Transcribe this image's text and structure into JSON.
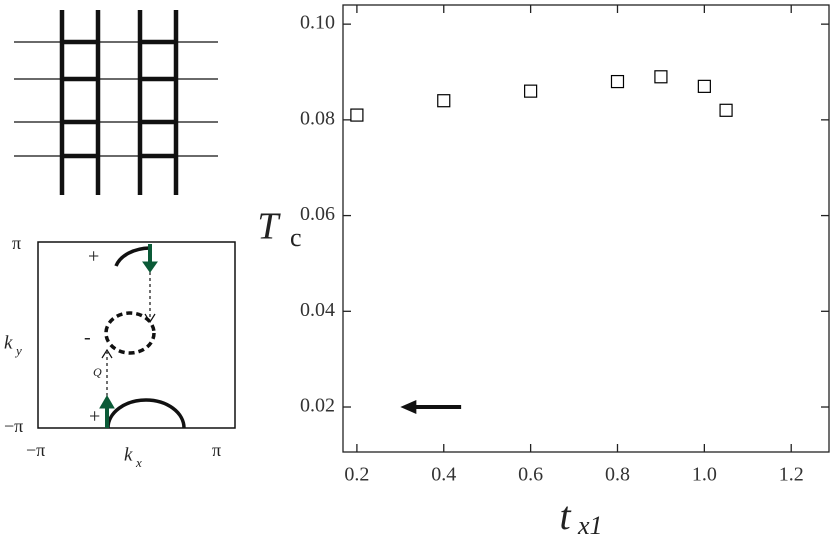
{
  "chart_data": {
    "type": "scatter",
    "x": [
      0.2,
      0.4,
      0.6,
      0.8,
      0.9,
      1.0,
      1.05
    ],
    "values": [
      0.081,
      0.084,
      0.086,
      0.088,
      0.089,
      0.087,
      0.082
    ],
    "color": "#000000",
    "xlim": [
      0.168,
      1.287
    ],
    "ylim": [
      0.0106,
      0.104
    ],
    "xticks": [
      0.2,
      0.4,
      0.6,
      0.8,
      {
        "value": 1.0,
        "label": "1.0"
      },
      1.2
    ],
    "yticks": [
      0.02,
      0.04,
      0.06,
      0.08,
      {
        "value": 0.1,
        "label": "0.10"
      }
    ],
    "ylabel": {
      "main": "T",
      "sub": "c"
    },
    "xlabel": {
      "main": "t",
      "sub": "x1"
    },
    "arrow": {
      "y": 0.02,
      "x_from": 0.44,
      "x_to": 0.3
    }
  },
  "inset": {
    "ky_top": "π",
    "ky_bottom": "−π",
    "kx_left": "−π",
    "kx_right": "π",
    "ky_label": {
      "main": "k",
      "sub": "y"
    },
    "kx_label": {
      "main": "k",
      "sub": "x"
    },
    "sign_top": "+",
    "sign_middle": "-",
    "sign_bottom": "+",
    "vector": "Q"
  }
}
